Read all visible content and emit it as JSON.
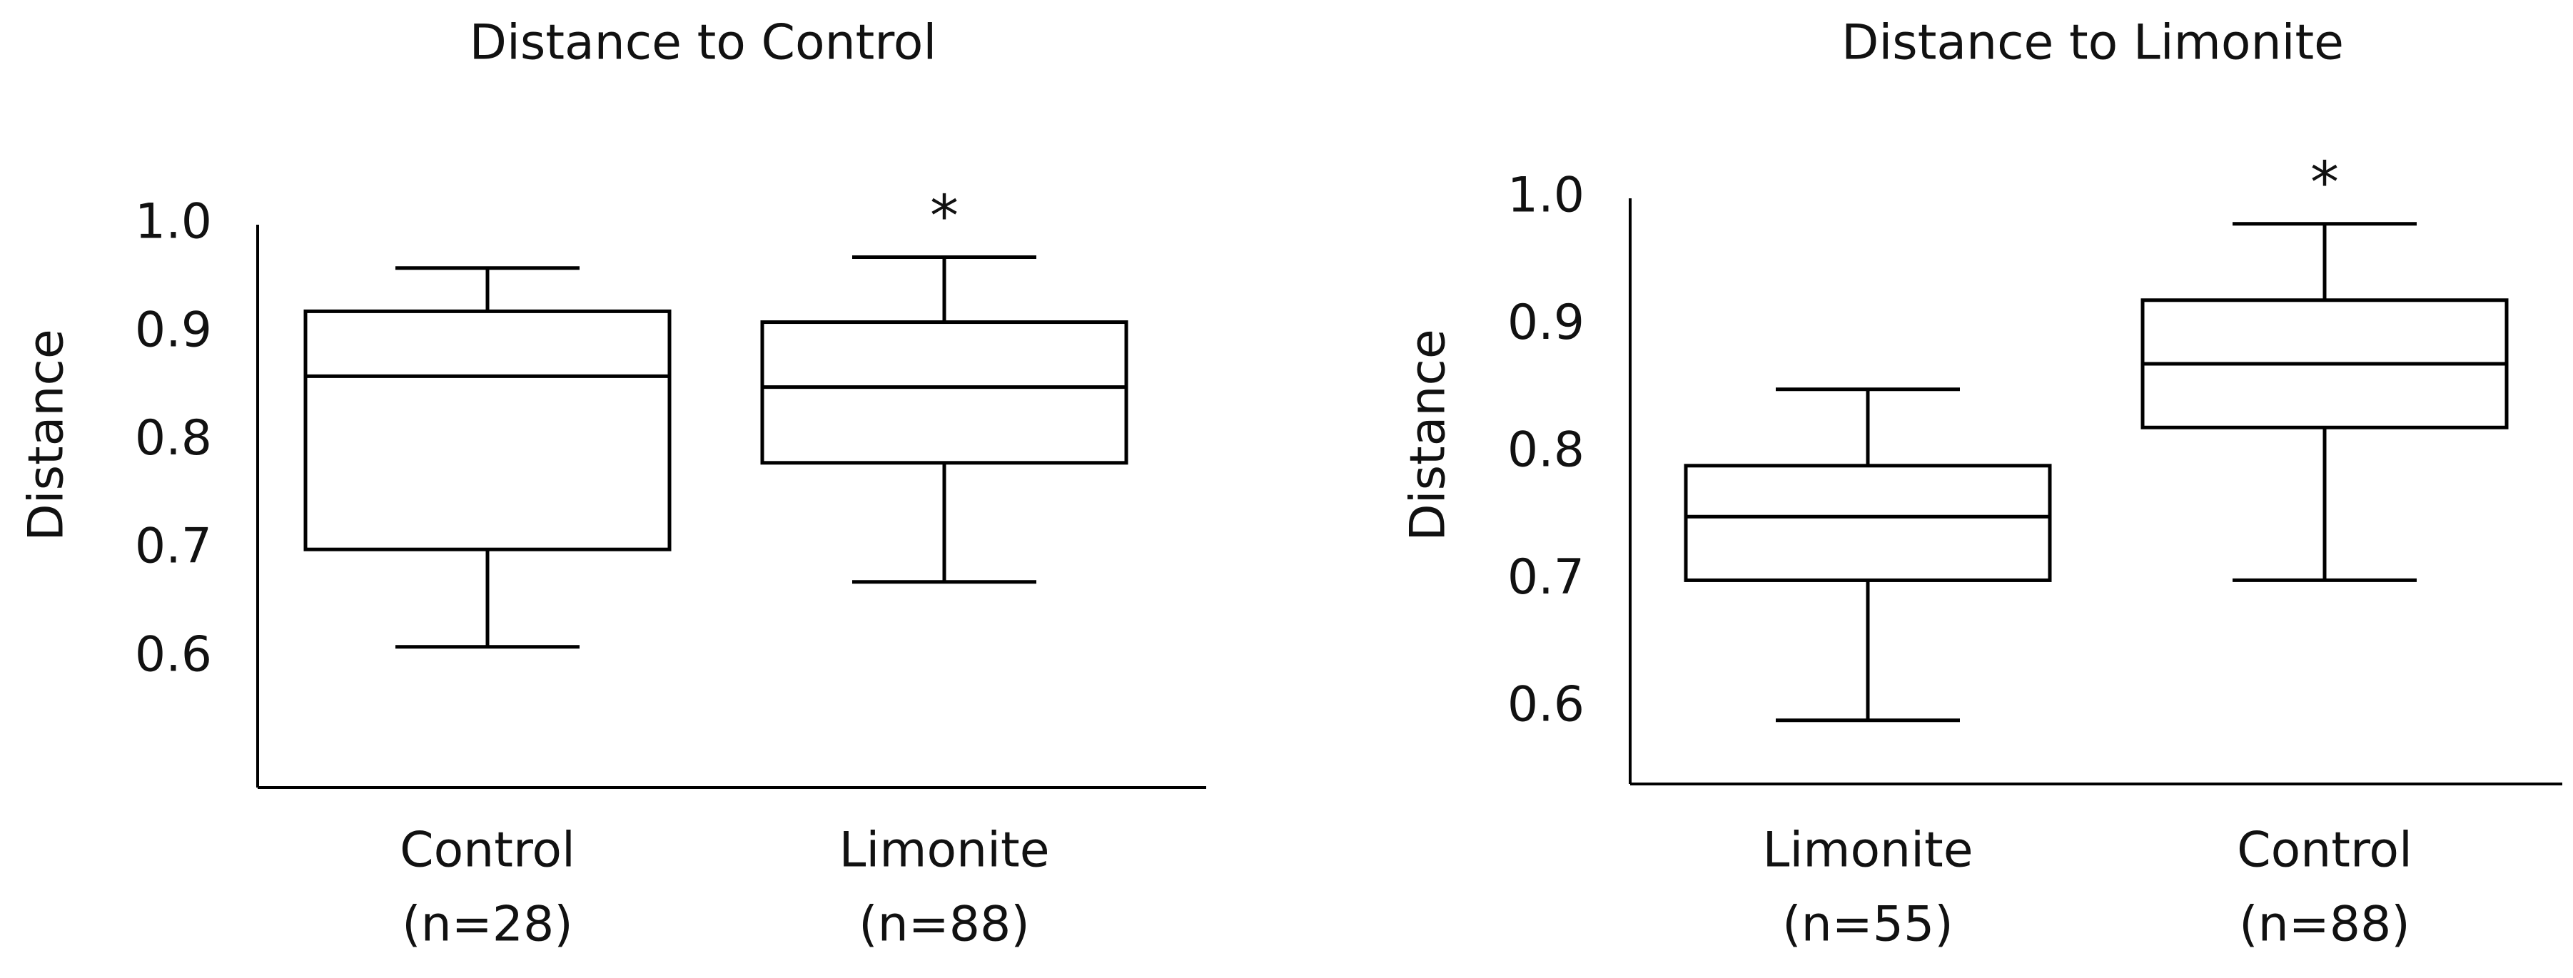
{
  "chart_data": [
    {
      "type": "box",
      "title": "Distance to Control",
      "y_label": "Distance",
      "categories": [
        "Control",
        "Limonite"
      ],
      "sublabels": [
        "(n=28)",
        "(n=88)"
      ],
      "stats": [
        {
          "min": 0.61,
          "q1": 0.7,
          "median": 0.86,
          "q3": 0.92,
          "max": 0.96
        },
        {
          "min": 0.67,
          "q1": 0.78,
          "median": 0.85,
          "q3": 0.91,
          "max": 0.97
        }
      ],
      "significance": [
        null,
        "*"
      ],
      "ylim": [
        0.48,
        1.0
      ],
      "yticks": [
        {
          "value": 0.6,
          "label": "0.6"
        },
        {
          "value": 0.7,
          "label": "0.7"
        },
        {
          "value": 0.8,
          "label": "0.8"
        },
        {
          "value": 0.9,
          "label": "0.9"
        },
        {
          "value": 1.0,
          "label": "1.0"
        }
      ],
      "color": "#000000"
    },
    {
      "type": "box",
      "title": "Distance to Limonite",
      "y_label": "Distance",
      "categories": [
        "Limonite",
        "Control"
      ],
      "sublabels": [
        "(n=55)",
        "(n=88)"
      ],
      "stats": [
        {
          "min": 0.59,
          "q1": 0.7,
          "median": 0.75,
          "q3": 0.79,
          "max": 0.85
        },
        {
          "min": 0.7,
          "q1": 0.82,
          "median": 0.87,
          "q3": 0.92,
          "max": 0.98
        }
      ],
      "significance": [
        null,
        "*"
      ],
      "ylim": [
        0.54,
        1.0
      ],
      "yticks": [
        {
          "value": 0.6,
          "label": "0.6"
        },
        {
          "value": 0.7,
          "label": "0.7"
        },
        {
          "value": 0.8,
          "label": "0.8"
        },
        {
          "value": 0.9,
          "label": "0.9"
        },
        {
          "value": 1.0,
          "label": "1.0"
        }
      ],
      "color": "#000000"
    }
  ]
}
